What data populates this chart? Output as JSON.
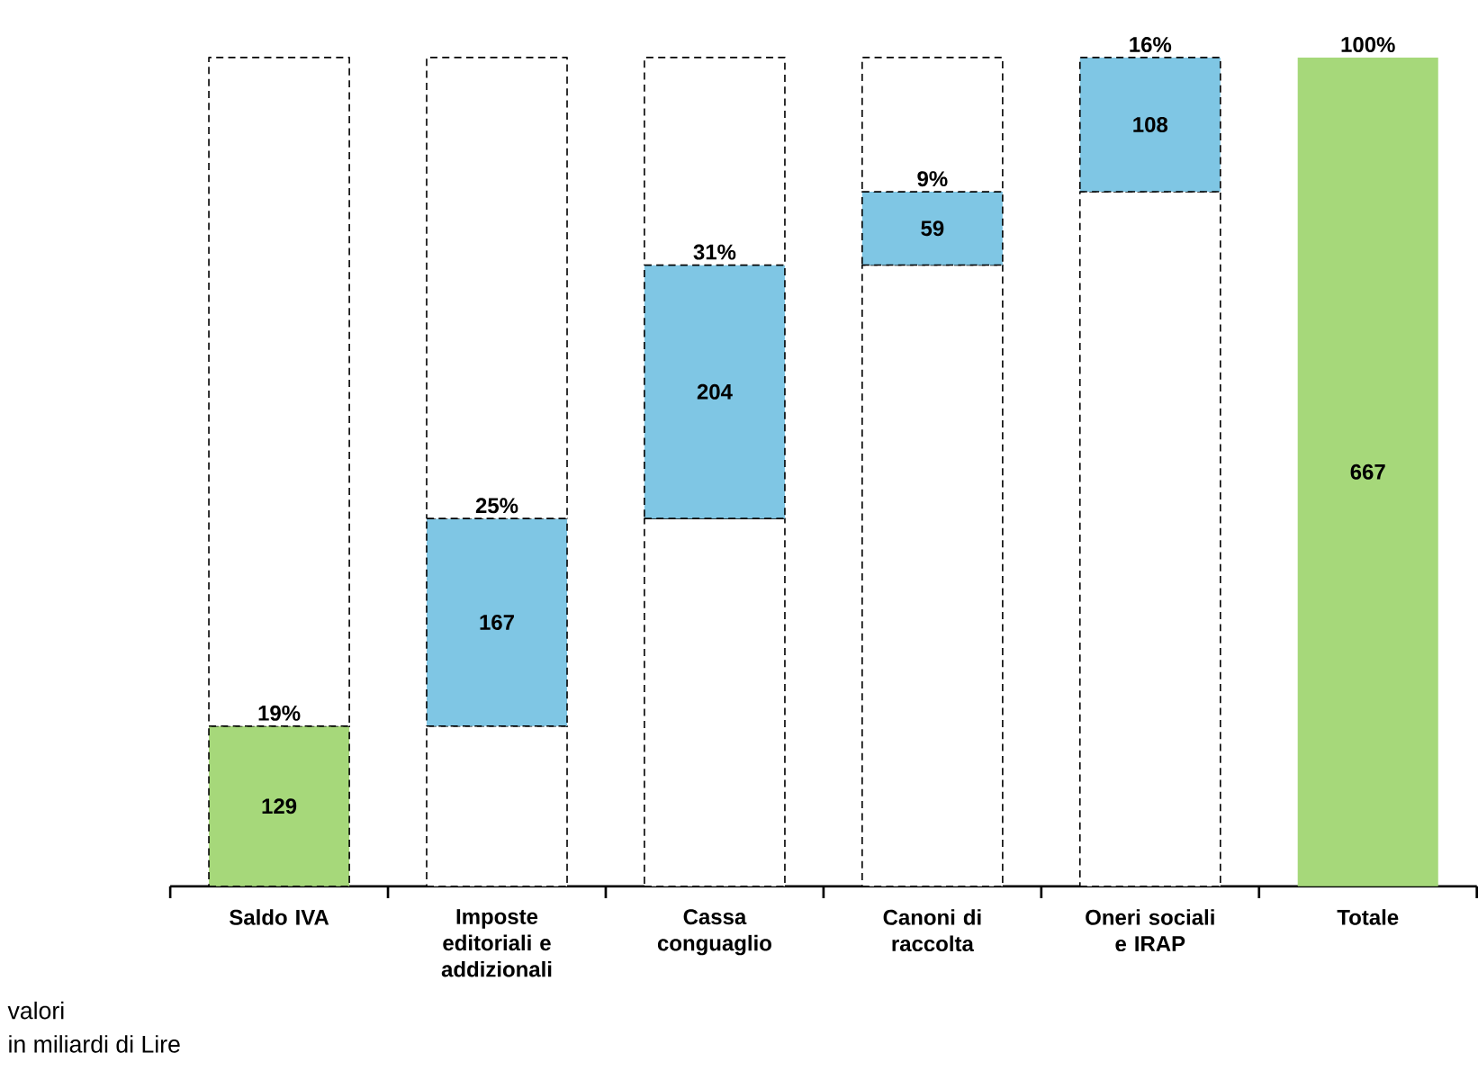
{
  "chart_data": {
    "type": "bar",
    "stacked": true,
    "categories": [
      "Saldo IVA",
      "Imposte editoriali e addizionali",
      "Cassa conguaglio",
      "Canoni di raccolta",
      "Oneri sociali e IRAP",
      "Totale"
    ],
    "series": [
      {
        "values": [
          null,
          129,
          296,
          500,
          559,
          null
        ],
        "color": "#ffffff",
        "line_style": "dashed"
      },
      {
        "values": [
          129,
          167,
          204,
          59,
          108,
          667
        ],
        "colors": [
          "#a6d87a",
          "#7fc6e4",
          "#7fc6e4",
          "#7fc6e4",
          "#7fc6e4",
          "#a6d87a"
        ],
        "value_labels": [
          "129",
          "167",
          "204",
          "59",
          "108",
          "667"
        ]
      },
      {
        "values": [
          538,
          371,
          167,
          108,
          null,
          null
        ],
        "color": "#ffffff",
        "line_style": "dashed"
      }
    ],
    "tick_labels": "x",
    "annotations": [
      {
        "text": "19%",
        "x": "Saldo IVA",
        "y": 129
      },
      {
        "text": "25%",
        "x": "Imposte editoriali e addizionali",
        "y": 296
      },
      {
        "text": "31%",
        "x": "Cassa conguaglio",
        "y": 500
      },
      {
        "text": "9%",
        "x": "Canoni di raccolta",
        "y": 559
      },
      {
        "text": "16%",
        "x": "Oneri sociali e IRAP",
        "y": 667
      },
      {
        "text": "100%",
        "x": "Totale",
        "y": 667
      },
      "valori",
      "in miliardi di Lire"
    ]
  }
}
